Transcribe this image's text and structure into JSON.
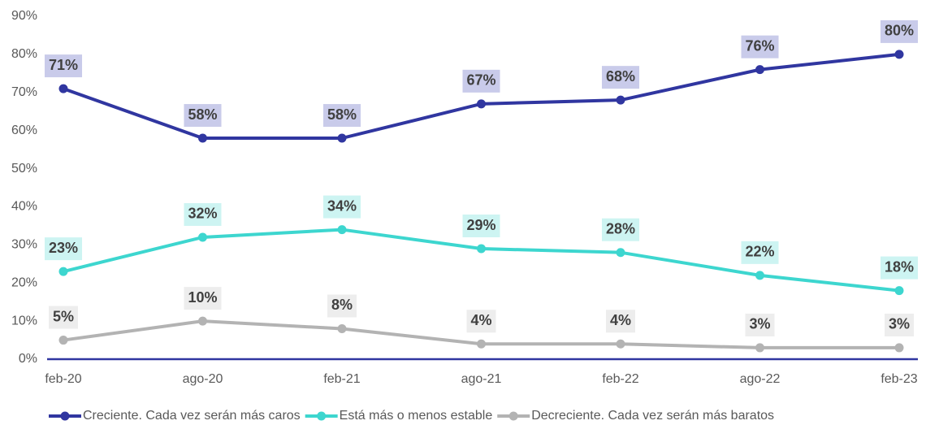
{
  "chart_data": {
    "type": "line",
    "categories": [
      "feb-20",
      "ago-20",
      "feb-21",
      "ago-21",
      "feb-22",
      "ago-22",
      "feb-23"
    ],
    "series": [
      {
        "name": "Creciente. Cada vez serán más caros",
        "color": "#3036a0",
        "label_bg": "#c9cbea",
        "values": [
          71,
          58,
          58,
          67,
          68,
          76,
          80
        ],
        "value_labels": [
          "71%",
          "58%",
          "58%",
          "67%",
          "68%",
          "76%",
          "80%"
        ]
      },
      {
        "name": "Está más o menos estable",
        "color": "#3dd6cf",
        "label_bg": "#cdf4f2",
        "values": [
          23,
          32,
          34,
          29,
          28,
          22,
          18
        ],
        "value_labels": [
          "23%",
          "32%",
          "34%",
          "29%",
          "28%",
          "22%",
          "18%"
        ]
      },
      {
        "name": "Decreciente. Cada vez serán más baratos",
        "color": "#b3b3b3",
        "label_bg": "#ededed",
        "values": [
          5,
          10,
          8,
          4,
          4,
          3,
          3
        ],
        "value_labels": [
          "5%",
          "10%",
          "8%",
          "4%",
          "4%",
          "3%",
          "3%"
        ]
      }
    ],
    "ylim": [
      0,
      90
    ],
    "yticks": [
      {
        "value": 0,
        "label": "0%"
      },
      {
        "value": 10,
        "label": "10%"
      },
      {
        "value": 20,
        "label": "20%"
      },
      {
        "value": 30,
        "label": "30%"
      },
      {
        "value": 40,
        "label": "40%"
      },
      {
        "value": 50,
        "label": "50%"
      },
      {
        "value": 60,
        "label": "60%"
      },
      {
        "value": 70,
        "label": "70%"
      },
      {
        "value": 80,
        "label": "80%"
      },
      {
        "value": 90,
        "label": "90%"
      }
    ],
    "grid": false,
    "legend": "bottom"
  }
}
